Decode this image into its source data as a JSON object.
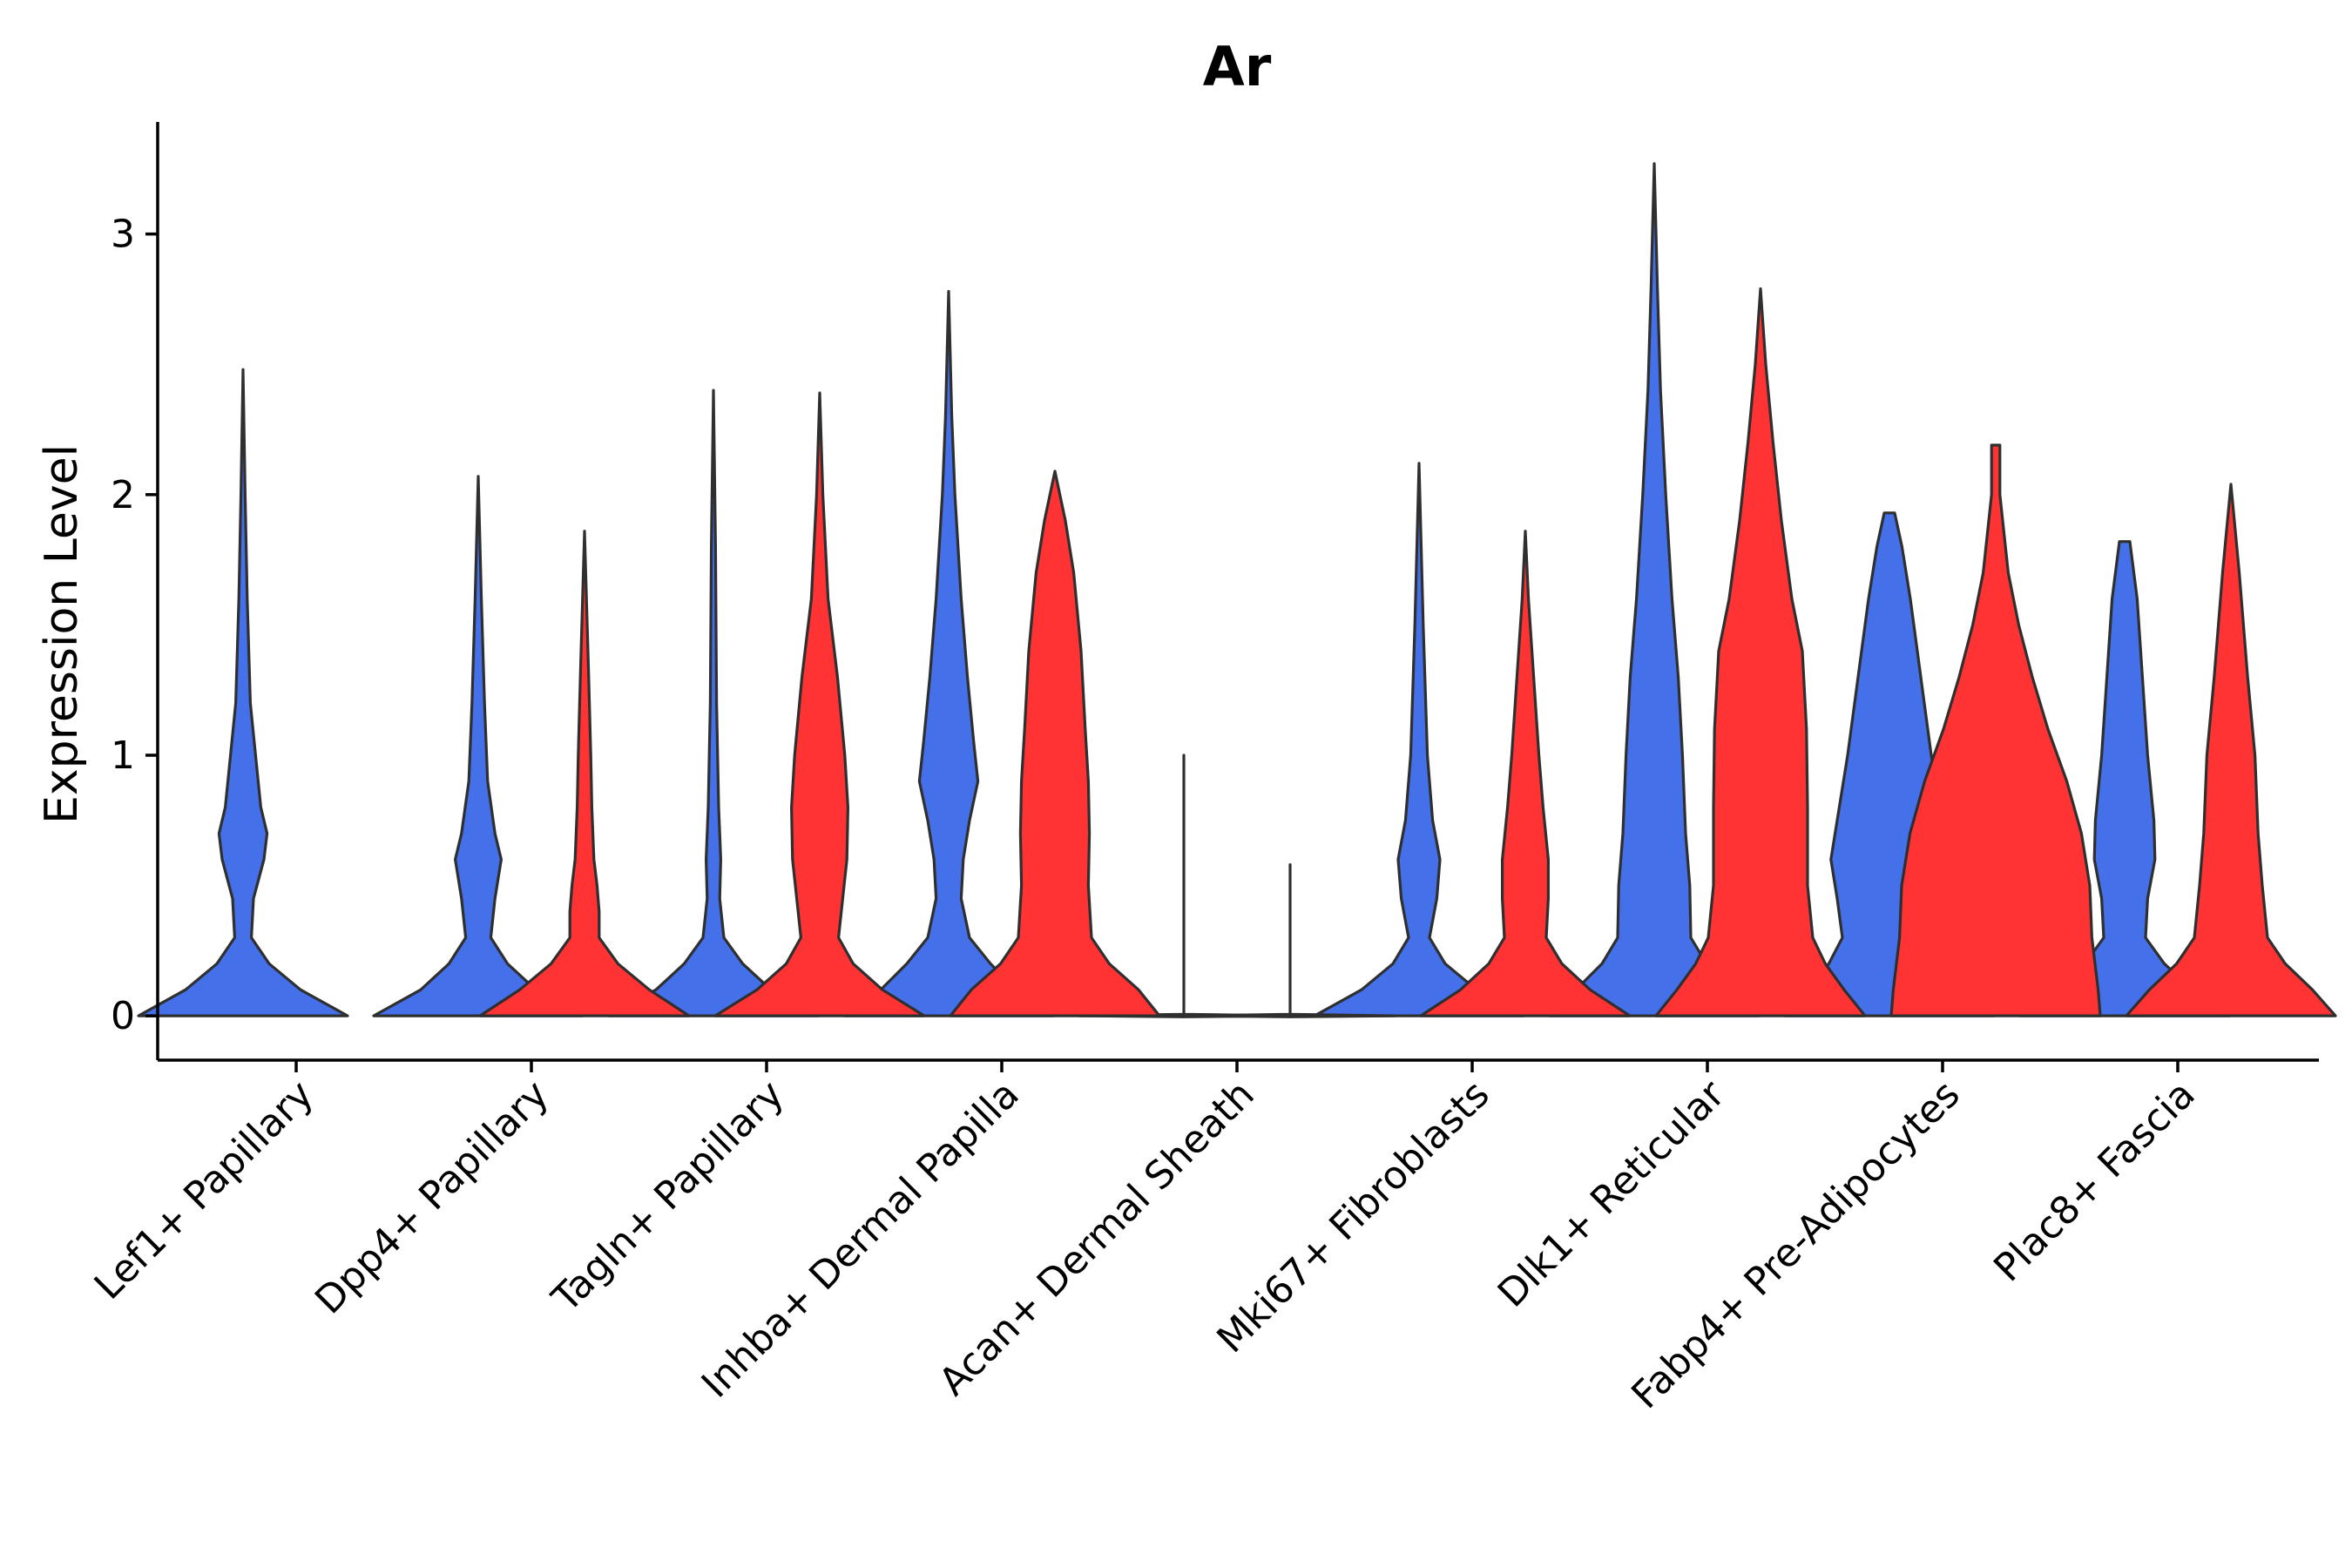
{
  "chart_data": {
    "type": "violin",
    "title": "Ar",
    "xlabel": "",
    "ylabel": "Expression Level",
    "ylim": [
      -0.17,
      3.43
    ],
    "yticks": [
      0,
      1,
      2,
      3
    ],
    "legend": "none",
    "colors": {
      "group_a": "#4470EA",
      "group_b": "#FF3333",
      "outline": "#2f2f2f",
      "axis": "#000000"
    },
    "categories": [
      "Lef1+ Papillary",
      "Dpp4+ Papillary",
      "Tagln+ Papillary",
      "Inhba+ Dermal Papilla",
      "Acan+ Dermal Sheath",
      "Mki67+ Fibroblasts",
      "Dlk1+ Reticular",
      "Fabp4+ Pre-Adipocytes",
      "Plac8+ Fascia"
    ],
    "series": [
      {
        "name": "group_a",
        "violins": [
          {
            "category": "Lef1+ Papillary",
            "profile": [
              [
                0,
                1.0
              ],
              [
                0.1,
                0.55
              ],
              [
                0.2,
                0.25
              ],
              [
                0.3,
                0.08
              ],
              [
                0.45,
                0.1
              ],
              [
                0.6,
                0.2
              ],
              [
                0.7,
                0.23
              ],
              [
                0.8,
                0.17
              ],
              [
                1.0,
                0.12
              ],
              [
                1.2,
                0.07
              ],
              [
                1.6,
                0.04
              ],
              [
                2.0,
                0.02
              ],
              [
                2.48,
                0.0
              ]
            ]
          },
          {
            "category": "Dpp4+ Papillary",
            "profile": [
              [
                0,
                1.0
              ],
              [
                0.1,
                0.55
              ],
              [
                0.2,
                0.28
              ],
              [
                0.3,
                0.12
              ],
              [
                0.45,
                0.16
              ],
              [
                0.6,
                0.22
              ],
              [
                0.7,
                0.16
              ],
              [
                0.9,
                0.09
              ],
              [
                1.2,
                0.06
              ],
              [
                1.6,
                0.03
              ],
              [
                2.07,
                0.0
              ]
            ]
          },
          {
            "category": "Tagln+ Papillary",
            "profile": [
              [
                0,
                1.0
              ],
              [
                0.1,
                0.55
              ],
              [
                0.2,
                0.28
              ],
              [
                0.3,
                0.1
              ],
              [
                0.45,
                0.06
              ],
              [
                0.6,
                0.07
              ],
              [
                0.8,
                0.05
              ],
              [
                1.2,
                0.03
              ],
              [
                1.8,
                0.02
              ],
              [
                2.4,
                0.0
              ]
            ]
          },
          {
            "category": "Inhba+ Dermal Papilla",
            "profile": [
              [
                0,
                1.0
              ],
              [
                0.1,
                0.65
              ],
              [
                0.2,
                0.4
              ],
              [
                0.3,
                0.2
              ],
              [
                0.45,
                0.12
              ],
              [
                0.6,
                0.14
              ],
              [
                0.75,
                0.2
              ],
              [
                0.9,
                0.28
              ],
              [
                1.05,
                0.24
              ],
              [
                1.3,
                0.18
              ],
              [
                1.6,
                0.12
              ],
              [
                2.0,
                0.06
              ],
              [
                2.3,
                0.03
              ],
              [
                2.78,
                0.0
              ]
            ]
          },
          {
            "category": "Acan+ Dermal Sheath",
            "profile": [
              [
                -0.004,
                0.0
              ],
              [
                0,
                1.0
              ],
              [
                0.006,
                0.0
              ],
              [
                0.1,
                0.0
              ],
              [
                1.0,
                0.0
              ]
            ]
          },
          {
            "category": "Mki67+ Fibroblasts",
            "profile": [
              [
                0,
                1.0
              ],
              [
                0.1,
                0.55
              ],
              [
                0.2,
                0.25
              ],
              [
                0.3,
                0.1
              ],
              [
                0.45,
                0.17
              ],
              [
                0.6,
                0.2
              ],
              [
                0.75,
                0.13
              ],
              [
                1.0,
                0.08
              ],
              [
                1.5,
                0.04
              ],
              [
                2.12,
                0.0
              ]
            ]
          },
          {
            "category": "Dlk1+ Reticular",
            "profile": [
              [
                0,
                1.0
              ],
              [
                0.1,
                0.75
              ],
              [
                0.2,
                0.5
              ],
              [
                0.3,
                0.35
              ],
              [
                0.5,
                0.34
              ],
              [
                0.7,
                0.3
              ],
              [
                1.0,
                0.27
              ],
              [
                1.3,
                0.23
              ],
              [
                1.6,
                0.17
              ],
              [
                2.0,
                0.11
              ],
              [
                2.4,
                0.06
              ],
              [
                2.8,
                0.03
              ],
              [
                3.27,
                0.0
              ]
            ]
          },
          {
            "category": "Fabp4+ Pre-Adipocytes",
            "profile": [
              [
                0,
                1.0
              ],
              [
                0.1,
                0.8
              ],
              [
                0.2,
                0.58
              ],
              [
                0.3,
                0.45
              ],
              [
                0.45,
                0.5
              ],
              [
                0.6,
                0.56
              ],
              [
                0.8,
                0.48
              ],
              [
                1.0,
                0.4
              ],
              [
                1.3,
                0.3
              ],
              [
                1.6,
                0.2
              ],
              [
                1.8,
                0.12
              ],
              [
                1.93,
                0.05
              ]
            ]
          },
          {
            "category": "Plac8+ Fascia",
            "profile": [
              [
                0,
                1.0
              ],
              [
                0.1,
                0.65
              ],
              [
                0.2,
                0.38
              ],
              [
                0.3,
                0.2
              ],
              [
                0.45,
                0.22
              ],
              [
                0.6,
                0.29
              ],
              [
                0.75,
                0.28
              ],
              [
                1.0,
                0.22
              ],
              [
                1.3,
                0.17
              ],
              [
                1.6,
                0.12
              ],
              [
                1.82,
                0.05
              ]
            ]
          }
        ]
      },
      {
        "name": "group_b",
        "violins": [
          {
            "category": "Dpp4+ Papillary",
            "profile": [
              [
                0,
                1.0
              ],
              [
                0.1,
                0.62
              ],
              [
                0.2,
                0.32
              ],
              [
                0.3,
                0.14
              ],
              [
                0.4,
                0.14
              ],
              [
                0.5,
                0.12
              ],
              [
                0.6,
                0.09
              ],
              [
                0.8,
                0.07
              ],
              [
                1.0,
                0.06
              ],
              [
                1.3,
                0.04
              ],
              [
                1.86,
                0.0
              ]
            ]
          },
          {
            "category": "Tagln+ Papillary",
            "profile": [
              [
                0,
                1.0
              ],
              [
                0.1,
                0.6
              ],
              [
                0.2,
                0.32
              ],
              [
                0.3,
                0.18
              ],
              [
                0.45,
                0.22
              ],
              [
                0.6,
                0.26
              ],
              [
                0.8,
                0.27
              ],
              [
                1.0,
                0.24
              ],
              [
                1.3,
                0.17
              ],
              [
                1.6,
                0.08
              ],
              [
                2.0,
                0.03
              ],
              [
                2.39,
                0.0
              ]
            ]
          },
          {
            "category": "Inhba+ Dermal Papilla",
            "profile": [
              [
                0,
                1.0
              ],
              [
                0.1,
                0.8
              ],
              [
                0.2,
                0.52
              ],
              [
                0.3,
                0.35
              ],
              [
                0.5,
                0.32
              ],
              [
                0.7,
                0.33
              ],
              [
                0.9,
                0.32
              ],
              [
                1.1,
                0.29
              ],
              [
                1.4,
                0.25
              ],
              [
                1.7,
                0.18
              ],
              [
                1.9,
                0.1
              ],
              [
                2.09,
                0.0
              ]
            ]
          },
          {
            "category": "Acan+ Dermal Sheath",
            "profile": [
              [
                -0.004,
                0.0
              ],
              [
                0,
                1.0
              ],
              [
                0.006,
                0.0
              ],
              [
                0.1,
                0.0
              ],
              [
                0.58,
                0.0
              ]
            ]
          },
          {
            "category": "Mki67+ Fibroblasts",
            "profile": [
              [
                0,
                1.0
              ],
              [
                0.1,
                0.62
              ],
              [
                0.2,
                0.35
              ],
              [
                0.3,
                0.2
              ],
              [
                0.45,
                0.22
              ],
              [
                0.6,
                0.22
              ],
              [
                0.8,
                0.17
              ],
              [
                1.0,
                0.13
              ],
              [
                1.3,
                0.08
              ],
              [
                1.6,
                0.03
              ],
              [
                1.86,
                0.0
              ]
            ]
          },
          {
            "category": "Dlk1+ Reticular",
            "profile": [
              [
                0,
                1.0
              ],
              [
                0.1,
                0.8
              ],
              [
                0.2,
                0.62
              ],
              [
                0.3,
                0.5
              ],
              [
                0.5,
                0.45
              ],
              [
                0.8,
                0.45
              ],
              [
                1.1,
                0.44
              ],
              [
                1.4,
                0.4
              ],
              [
                1.6,
                0.3
              ],
              [
                1.9,
                0.2
              ],
              [
                2.2,
                0.12
              ],
              [
                2.5,
                0.05
              ],
              [
                2.79,
                0.0
              ]
            ]
          },
          {
            "category": "Fabp4+ Pre-Adipocytes",
            "profile": [
              [
                0,
                1.0
              ],
              [
                0.1,
                0.98
              ],
              [
                0.3,
                0.92
              ],
              [
                0.5,
                0.9
              ],
              [
                0.7,
                0.82
              ],
              [
                0.9,
                0.68
              ],
              [
                1.1,
                0.5
              ],
              [
                1.3,
                0.35
              ],
              [
                1.5,
                0.22
              ],
              [
                1.7,
                0.12
              ],
              [
                2.0,
                0.04
              ],
              [
                2.19,
                0.04
              ]
            ]
          },
          {
            "category": "Plac8+ Fascia",
            "profile": [
              [
                0,
                1.0
              ],
              [
                0.1,
                0.78
              ],
              [
                0.2,
                0.52
              ],
              [
                0.3,
                0.35
              ],
              [
                0.5,
                0.3
              ],
              [
                0.7,
                0.26
              ],
              [
                1.0,
                0.23
              ],
              [
                1.3,
                0.16
              ],
              [
                1.7,
                0.08
              ],
              [
                2.04,
                0.0
              ]
            ]
          }
        ]
      }
    ]
  }
}
